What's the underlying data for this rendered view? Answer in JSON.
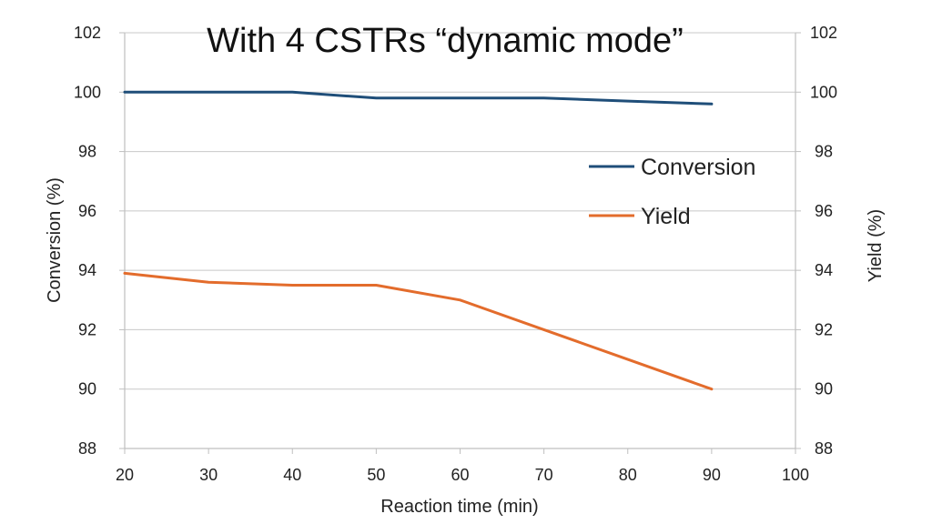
{
  "chart_data": {
    "type": "line",
    "title": "With 4 CSTRs “dynamic mode”",
    "xlabel": "Reaction time (min)",
    "ylabel": "Conversion (%)",
    "y2label": "Yield (%)",
    "xlim": [
      20,
      100
    ],
    "xticks": [
      20,
      30,
      40,
      50,
      60,
      70,
      80,
      90,
      100
    ],
    "ylim": [
      88,
      102
    ],
    "yticks": [
      88,
      90,
      92,
      94,
      96,
      98,
      100,
      102
    ],
    "y2lim": [
      88,
      102
    ],
    "y2ticks": [
      88,
      90,
      92,
      94,
      96,
      98,
      100,
      102
    ],
    "grid": true,
    "legend_position": "right",
    "series": [
      {
        "name": "Conversion",
        "axis": "left",
        "color": "#1f4e79",
        "x": [
          20,
          30,
          40,
          50,
          60,
          70,
          80,
          90
        ],
        "values": [
          100.0,
          100.0,
          100.0,
          99.8,
          99.8,
          99.8,
          99.7,
          99.6
        ]
      },
      {
        "name": "Yield",
        "axis": "right",
        "color": "#e36c2c",
        "x": [
          20,
          30,
          40,
          50,
          60,
          70,
          80,
          90
        ],
        "values": [
          93.9,
          93.6,
          93.5,
          93.5,
          93.0,
          92.0,
          91.0,
          90.0
        ]
      }
    ]
  }
}
